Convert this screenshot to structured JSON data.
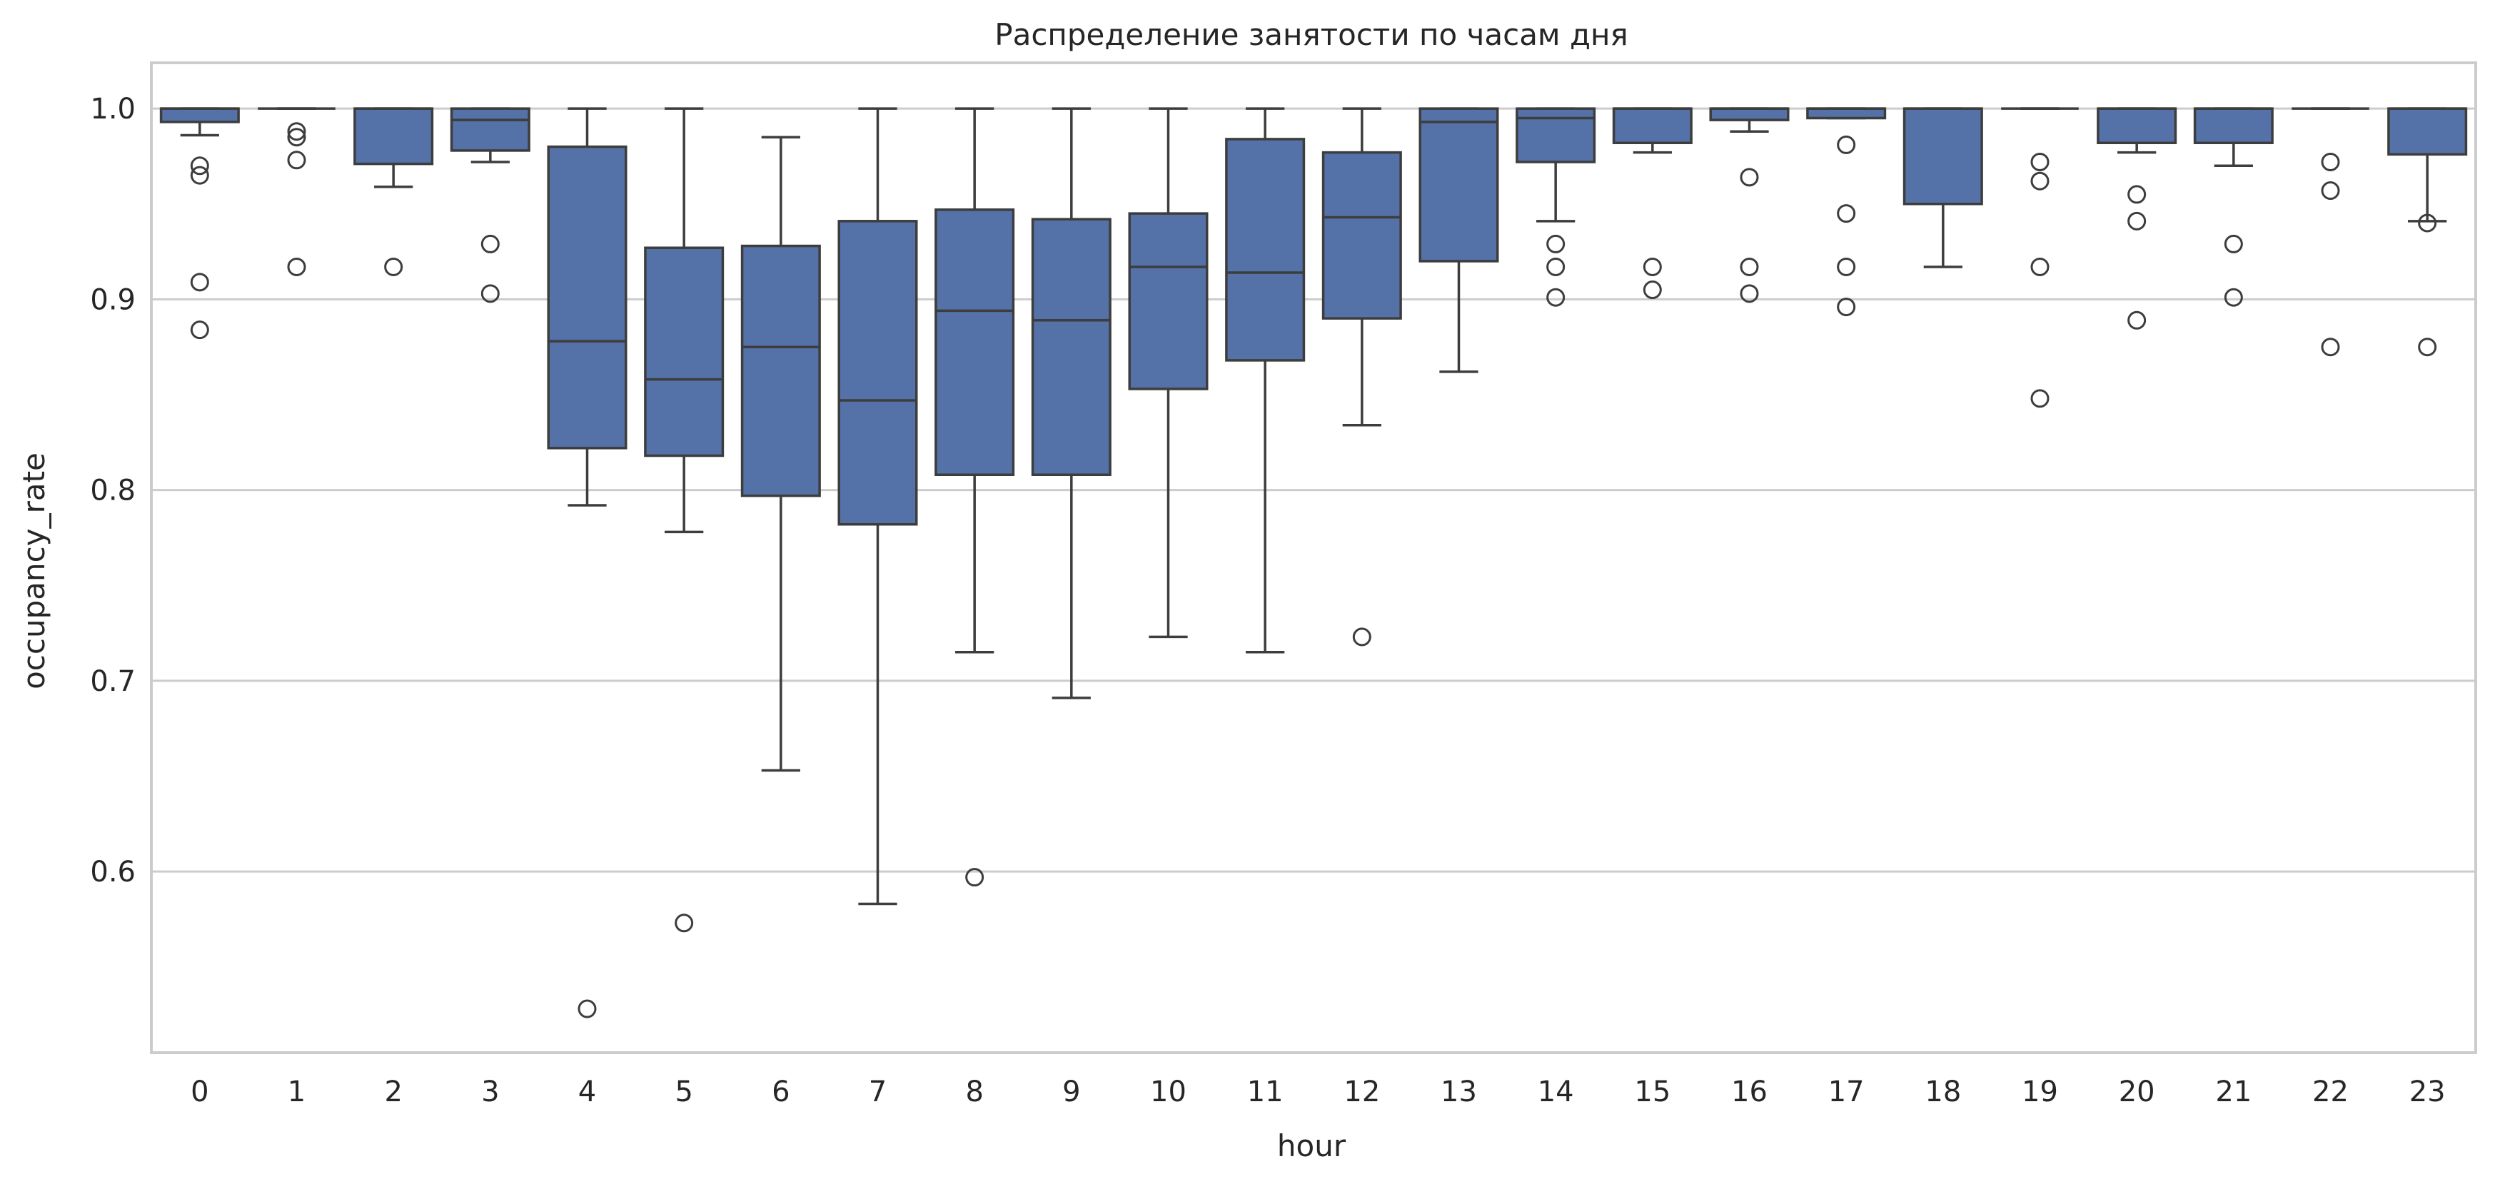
{
  "colors": {
    "box_fill": "#5471a8",
    "box_edge": "#3d3d3d",
    "grid": "#cccccc",
    "frame": "#cccccc",
    "background": "#ffffff",
    "text": "#262626"
  },
  "chart_data": {
    "type": "box",
    "title": "Распределение занятости по часам дня",
    "xlabel": "hour",
    "ylabel": "occupancy_rate",
    "ylim": [
      0.505,
      1.024
    ],
    "yticks": [
      0.6,
      0.7,
      0.8,
      0.9,
      1.0
    ],
    "ytick_labels": [
      "0.6",
      "0.7",
      "0.8",
      "0.9",
      "1.0"
    ],
    "grid": "horizontal",
    "categories": [
      "0",
      "1",
      "2",
      "3",
      "4",
      "5",
      "6",
      "7",
      "8",
      "9",
      "10",
      "11",
      "12",
      "13",
      "14",
      "15",
      "16",
      "17",
      "18",
      "19",
      "20",
      "21",
      "22",
      "23"
    ],
    "boxes": [
      {
        "category": "0",
        "whislo": 0.986,
        "q1": 0.993,
        "med": 1.0,
        "q3": 1.0,
        "whishi": 1.0,
        "fliers": [
          0.97,
          0.965,
          0.909,
          0.884
        ]
      },
      {
        "category": "1",
        "whislo": 1.0,
        "q1": 1.0,
        "med": 1.0,
        "q3": 1.0,
        "whishi": 1.0,
        "fliers": [
          0.988,
          0.985,
          0.973,
          0.917
        ]
      },
      {
        "category": "2",
        "whislo": 0.959,
        "q1": 0.971,
        "med": 1.0,
        "q3": 1.0,
        "whishi": 1.0,
        "fliers": [
          0.917
        ]
      },
      {
        "category": "3",
        "whislo": 0.972,
        "q1": 0.978,
        "med": 0.994,
        "q3": 1.0,
        "whishi": 1.0,
        "fliers": [
          0.929,
          0.903
        ]
      },
      {
        "category": "4",
        "whislo": 0.792,
        "q1": 0.822,
        "med": 0.878,
        "q3": 0.98,
        "whishi": 1.0,
        "fliers": [
          0.528
        ]
      },
      {
        "category": "5",
        "whislo": 0.778,
        "q1": 0.818,
        "med": 0.858,
        "q3": 0.927,
        "whishi": 1.0,
        "fliers": [
          0.573
        ]
      },
      {
        "category": "6",
        "whislo": 0.653,
        "q1": 0.797,
        "med": 0.875,
        "q3": 0.928,
        "whishi": 0.985,
        "fliers": []
      },
      {
        "category": "7",
        "whislo": 0.583,
        "q1": 0.782,
        "med": 0.847,
        "q3": 0.941,
        "whishi": 1.0,
        "fliers": []
      },
      {
        "category": "8",
        "whislo": 0.715,
        "q1": 0.808,
        "med": 0.894,
        "q3": 0.947,
        "whishi": 1.0,
        "fliers": [
          0.597
        ]
      },
      {
        "category": "9",
        "whislo": 0.691,
        "q1": 0.808,
        "med": 0.889,
        "q3": 0.942,
        "whishi": 1.0,
        "fliers": []
      },
      {
        "category": "10",
        "whislo": 0.723,
        "q1": 0.853,
        "med": 0.917,
        "q3": 0.945,
        "whishi": 1.0,
        "fliers": []
      },
      {
        "category": "11",
        "whislo": 0.715,
        "q1": 0.868,
        "med": 0.914,
        "q3": 0.984,
        "whishi": 1.0,
        "fliers": []
      },
      {
        "category": "12",
        "whislo": 0.834,
        "q1": 0.89,
        "med": 0.943,
        "q3": 0.977,
        "whishi": 1.0,
        "fliers": [
          0.723
        ]
      },
      {
        "category": "13",
        "whislo": 0.862,
        "q1": 0.92,
        "med": 0.993,
        "q3": 1.0,
        "whishi": 1.0,
        "fliers": []
      },
      {
        "category": "14",
        "whislo": 0.941,
        "q1": 0.972,
        "med": 0.995,
        "q3": 1.0,
        "whishi": 1.0,
        "fliers": [
          0.929,
          0.917,
          0.901
        ]
      },
      {
        "category": "15",
        "whislo": 0.977,
        "q1": 0.982,
        "med": 1.0,
        "q3": 1.0,
        "whishi": 1.0,
        "fliers": [
          0.917,
          0.905
        ]
      },
      {
        "category": "16",
        "whislo": 0.988,
        "q1": 0.994,
        "med": 1.0,
        "q3": 1.0,
        "whishi": 1.0,
        "fliers": [
          0.964,
          0.917,
          0.903
        ]
      },
      {
        "category": "17",
        "whislo": 0.995,
        "q1": 0.995,
        "med": 1.0,
        "q3": 1.0,
        "whishi": 1.0,
        "fliers": [
          0.981,
          0.945,
          0.917,
          0.896
        ]
      },
      {
        "category": "18",
        "whislo": 0.917,
        "q1": 0.95,
        "med": 1.0,
        "q3": 1.0,
        "whishi": 1.0,
        "fliers": []
      },
      {
        "category": "19",
        "whislo": 1.0,
        "q1": 1.0,
        "med": 1.0,
        "q3": 1.0,
        "whishi": 1.0,
        "fliers": [
          0.972,
          0.962,
          0.917,
          0.848
        ]
      },
      {
        "category": "20",
        "whislo": 0.977,
        "q1": 0.982,
        "med": 1.0,
        "q3": 1.0,
        "whishi": 1.0,
        "fliers": [
          0.955,
          0.941,
          0.889
        ]
      },
      {
        "category": "21",
        "whislo": 0.97,
        "q1": 0.982,
        "med": 1.0,
        "q3": 1.0,
        "whishi": 1.0,
        "fliers": [
          0.929,
          0.901
        ]
      },
      {
        "category": "22",
        "whislo": 1.0,
        "q1": 1.0,
        "med": 1.0,
        "q3": 1.0,
        "whishi": 1.0,
        "fliers": [
          0.972,
          0.957,
          0.875
        ]
      },
      {
        "category": "23",
        "whislo": 0.941,
        "q1": 0.976,
        "med": 1.0,
        "q3": 1.0,
        "whishi": 1.0,
        "fliers": [
          0.94,
          0.875
        ]
      }
    ]
  }
}
